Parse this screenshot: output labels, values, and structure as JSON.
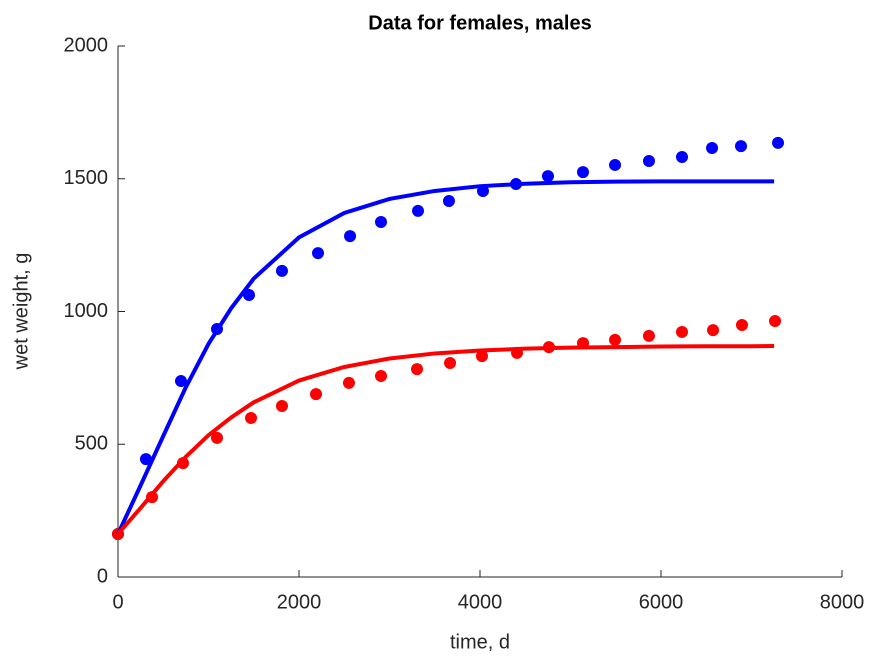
{
  "chart_data": {
    "type": "scatter",
    "title": "Data for females, males",
    "x_label": "time, d",
    "y_label": "wet weight, g",
    "xlim": [
      0,
      8000
    ],
    "ylim": [
      0,
      2000
    ],
    "xticks": [
      0,
      2000,
      4000,
      6000,
      8000
    ],
    "yticks": [
      0,
      500,
      1000,
      1500,
      2000
    ],
    "grid": false,
    "series": [
      {
        "color": "#0000ff",
        "style": "markers",
        "x": [
          0,
          309,
          696,
          1094,
          1448,
          1812,
          2210,
          2564,
          2906,
          3315,
          3657,
          4033,
          4398,
          4751,
          5138,
          5492,
          5867,
          6232,
          6564,
          6884,
          7293
        ],
        "values": [
          162,
          444,
          738,
          934,
          1062,
          1153,
          1220,
          1284,
          1337,
          1379,
          1416,
          1454,
          1480,
          1510,
          1525,
          1552,
          1567,
          1582,
          1616,
          1623,
          1635
        ]
      },
      {
        "color": "#ff0000",
        "style": "markers",
        "x": [
          0,
          376,
          718,
          1094,
          1470,
          1812,
          2188,
          2552,
          2906,
          3304,
          3669,
          4022,
          4409,
          4762,
          5138,
          5492,
          5867,
          6232,
          6575,
          6895,
          7260
        ],
        "values": [
          162,
          301,
          429,
          524,
          599,
          644,
          689,
          731,
          757,
          783,
          806,
          832,
          844,
          866,
          881,
          893,
          908,
          923,
          930,
          949,
          964
        ]
      },
      {
        "color": "#0000ff",
        "style": "line",
        "x": [
          0,
          250,
          500,
          750,
          1000,
          1250,
          1500,
          2000,
          2500,
          3000,
          3500,
          4000,
          4500,
          5000,
          5500,
          6000,
          6500,
          7000,
          7250
        ],
        "values": [
          162,
          345,
          531,
          715,
          878,
          1012,
          1124,
          1279,
          1371,
          1424,
          1454,
          1472,
          1481,
          1487,
          1489,
          1490,
          1490,
          1490,
          1490
        ]
      },
      {
        "color": "#ff0000",
        "style": "line",
        "x": [
          0,
          250,
          500,
          750,
          1000,
          1250,
          1500,
          2000,
          2500,
          3000,
          3500,
          4000,
          4500,
          5000,
          5500,
          6000,
          6500,
          7000,
          7250
        ],
        "values": [
          162,
          260,
          361,
          453,
          534,
          601,
          658,
          740,
          791,
          823,
          842,
          853,
          860,
          864,
          866,
          868,
          869,
          869,
          870
        ]
      }
    ]
  }
}
